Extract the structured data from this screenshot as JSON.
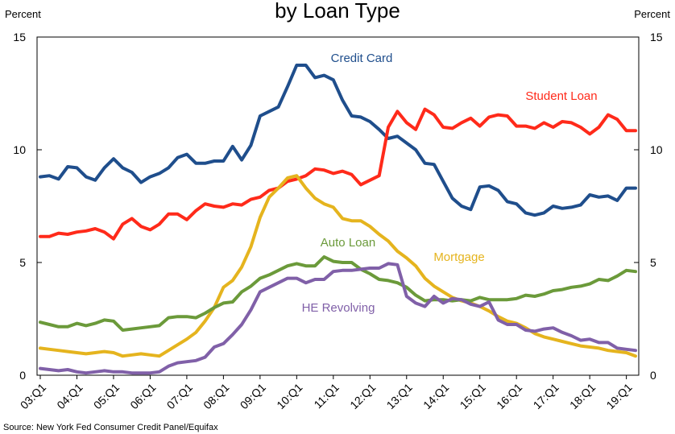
{
  "chart_data": {
    "type": "line",
    "title": "by Loan Type",
    "ylabel_left": "Percent",
    "ylabel_right": "Percent",
    "ylim": [
      0,
      15
    ],
    "yticks": [
      0,
      5,
      10,
      15
    ],
    "x": [
      "03:Q1",
      "03:Q2",
      "03:Q3",
      "03:Q4",
      "04:Q1",
      "04:Q2",
      "04:Q3",
      "04:Q4",
      "05:Q1",
      "05:Q2",
      "05:Q3",
      "05:Q4",
      "06:Q1",
      "06:Q2",
      "06:Q3",
      "06:Q4",
      "07:Q1",
      "07:Q2",
      "07:Q3",
      "07:Q4",
      "08:Q1",
      "08:Q2",
      "08:Q3",
      "08:Q4",
      "09:Q1",
      "09:Q2",
      "09:Q3",
      "09:Q4",
      "10:Q1",
      "10:Q2",
      "10:Q3",
      "10:Q4",
      "11:Q1",
      "11:Q2",
      "11:Q3",
      "11:Q4",
      "12:Q1",
      "12:Q2",
      "12:Q3",
      "12:Q4",
      "13:Q1",
      "13:Q2",
      "13:Q3",
      "13:Q4",
      "14:Q1",
      "14:Q2",
      "14:Q3",
      "14:Q4",
      "15:Q1",
      "15:Q2",
      "15:Q3",
      "15:Q4",
      "16:Q1",
      "16:Q2",
      "16:Q3",
      "16:Q4",
      "17:Q1",
      "17:Q2",
      "17:Q3",
      "17:Q4",
      "18:Q1",
      "18:Q2",
      "18:Q3",
      "18:Q4",
      "19:Q1",
      "19:Q2"
    ],
    "xtick_labels": [
      "03:Q1",
      "04:Q1",
      "05:Q1",
      "06:Q1",
      "07:Q1",
      "08:Q1",
      "09:Q1",
      "10:Q1",
      "11:Q1",
      "12:Q1",
      "13:Q1",
      "14:Q1",
      "15:Q1",
      "16:Q1",
      "17:Q1",
      "18:Q1",
      "19:Q1"
    ],
    "series": [
      {
        "name": "Credit Card",
        "color": "#1f4e8c",
        "values": [
          8.8,
          8.85,
          8.7,
          9.25,
          9.2,
          8.8,
          8.65,
          9.2,
          9.6,
          9.2,
          9.0,
          8.55,
          8.8,
          8.95,
          9.2,
          9.65,
          9.8,
          9.4,
          9.4,
          9.5,
          9.5,
          10.15,
          9.55,
          10.2,
          11.5,
          11.7,
          11.9,
          12.8,
          13.75,
          13.75,
          13.2,
          13.3,
          13.1,
          12.2,
          11.5,
          11.45,
          11.25,
          10.9,
          10.5,
          10.6,
          10.3,
          10.0,
          9.4,
          9.35,
          8.6,
          7.85,
          7.5,
          7.35,
          8.35,
          8.4,
          8.2,
          7.7,
          7.6,
          7.2,
          7.1,
          7.2,
          7.5,
          7.4,
          7.45,
          7.55,
          8.0,
          7.9,
          7.95,
          7.75,
          8.3,
          8.3
        ]
      },
      {
        "name": "Student Loan",
        "color": "#ff2a1a",
        "values": [
          6.15,
          6.15,
          6.3,
          6.25,
          6.35,
          6.4,
          6.5,
          6.35,
          6.05,
          6.7,
          6.95,
          6.6,
          6.45,
          6.7,
          7.15,
          7.15,
          6.9,
          7.3,
          7.6,
          7.5,
          7.45,
          7.6,
          7.55,
          7.8,
          7.9,
          8.2,
          8.3,
          8.6,
          8.7,
          8.85,
          9.15,
          9.1,
          8.95,
          9.05,
          8.9,
          8.45,
          8.65,
          8.85,
          11.0,
          11.7,
          11.2,
          10.9,
          11.8,
          11.55,
          11.0,
          10.95,
          11.2,
          11.4,
          11.05,
          11.45,
          11.55,
          11.5,
          11.05,
          11.05,
          10.95,
          11.2,
          11.0,
          11.25,
          11.2,
          11.0,
          10.7,
          11.0,
          11.55,
          11.35,
          10.85,
          10.85
        ]
      },
      {
        "name": "Mortgage",
        "color": "#e5b41e",
        "values": [
          1.2,
          1.15,
          1.1,
          1.05,
          1.0,
          0.95,
          1.0,
          1.05,
          1.0,
          0.85,
          0.9,
          0.95,
          0.9,
          0.85,
          1.1,
          1.35,
          1.6,
          1.9,
          2.4,
          3.0,
          3.9,
          4.2,
          4.8,
          5.7,
          7.0,
          7.9,
          8.3,
          8.75,
          8.85,
          8.3,
          7.85,
          7.6,
          7.45,
          6.95,
          6.85,
          6.85,
          6.6,
          6.25,
          5.95,
          5.5,
          5.2,
          4.85,
          4.3,
          3.95,
          3.7,
          3.45,
          3.3,
          3.2,
          3.05,
          2.85,
          2.6,
          2.4,
          2.3,
          2.1,
          1.85,
          1.7,
          1.6,
          1.5,
          1.4,
          1.3,
          1.25,
          1.2,
          1.1,
          1.05,
          1.0,
          0.85
        ]
      },
      {
        "name": "Auto Loan",
        "color": "#6b9a3a",
        "values": [
          2.35,
          2.25,
          2.15,
          2.15,
          2.3,
          2.2,
          2.3,
          2.45,
          2.4,
          2.0,
          2.05,
          2.1,
          2.15,
          2.2,
          2.55,
          2.6,
          2.6,
          2.55,
          2.75,
          3.0,
          3.2,
          3.25,
          3.7,
          3.95,
          4.3,
          4.45,
          4.65,
          4.85,
          4.95,
          4.85,
          4.85,
          5.25,
          5.05,
          5.0,
          5.0,
          4.7,
          4.5,
          4.25,
          4.2,
          4.1,
          3.9,
          3.55,
          3.3,
          3.35,
          3.35,
          3.3,
          3.35,
          3.3,
          3.45,
          3.35,
          3.35,
          3.35,
          3.4,
          3.55,
          3.5,
          3.6,
          3.75,
          3.8,
          3.9,
          3.95,
          4.05,
          4.25,
          4.2,
          4.4,
          4.65,
          4.6
        ]
      },
      {
        "name": "HE Revolving",
        "color": "#8060a8",
        "values": [
          0.3,
          0.25,
          0.2,
          0.25,
          0.15,
          0.1,
          0.15,
          0.2,
          0.15,
          0.15,
          0.1,
          0.1,
          0.1,
          0.15,
          0.4,
          0.55,
          0.6,
          0.65,
          0.8,
          1.25,
          1.4,
          1.8,
          2.25,
          2.9,
          3.7,
          3.9,
          4.1,
          4.3,
          4.3,
          4.1,
          4.25,
          4.25,
          4.6,
          4.65,
          4.65,
          4.7,
          4.75,
          4.75,
          4.95,
          4.9,
          3.5,
          3.2,
          3.05,
          3.5,
          3.2,
          3.4,
          3.35,
          3.15,
          3.05,
          3.25,
          2.45,
          2.25,
          2.25,
          2.0,
          1.95,
          2.05,
          2.1,
          1.9,
          1.75,
          1.55,
          1.6,
          1.45,
          1.45,
          1.2,
          1.15,
          1.1
        ]
      }
    ],
    "annotations": [
      {
        "text": "Credit Card",
        "series": "Credit Card"
      },
      {
        "text": "Student Loan",
        "series": "Student Loan"
      },
      {
        "text": "Mortgage",
        "series": "Mortgage"
      },
      {
        "text": "Auto Loan",
        "series": "Auto Loan"
      },
      {
        "text": "HE Revolving",
        "series": "HE Revolving"
      }
    ],
    "grid": false,
    "source": "Source: New York Fed Consumer Credit Panel/Equifax"
  }
}
